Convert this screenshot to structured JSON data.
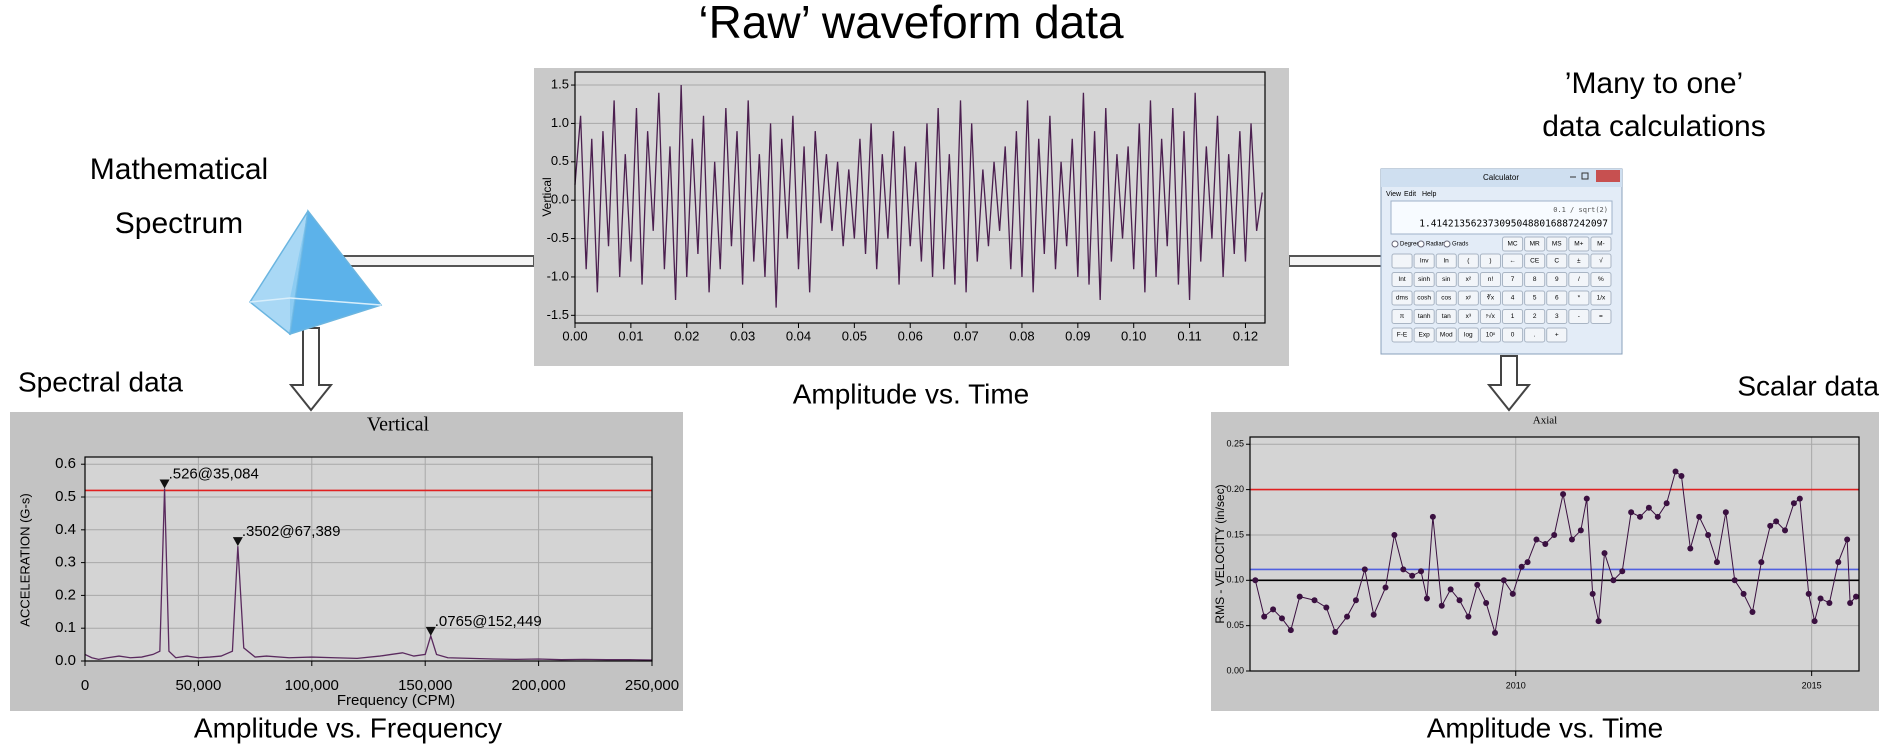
{
  "slide": {
    "title": "‘Raw’ waveform data",
    "spectrum_label_1": "Mathematical",
    "spectrum_label_2": "Spectrum",
    "calc_label_1": "’Many to one’",
    "calc_label_2": "data calculations",
    "spectral_label": "Spectral data",
    "scalar_label": "Scalar data"
  },
  "chart_data": [
    {
      "type": "line",
      "caption": "Amplitude vs. Time",
      "y_label": "Vertical",
      "color": "#4b1f4f",
      "grid": "y",
      "x": [
        0,
        0.001,
        0.002,
        0.003,
        0.004,
        0.005,
        0.006,
        0.007,
        0.008,
        0.009,
        0.01,
        0.011,
        0.012,
        0.013,
        0.014,
        0.015,
        0.016,
        0.017,
        0.018,
        0.019,
        0.02,
        0.021,
        0.022,
        0.023,
        0.024,
        0.025,
        0.026,
        0.027,
        0.028,
        0.029,
        0.03,
        0.031,
        0.032,
        0.033,
        0.034,
        0.035,
        0.036,
        0.037,
        0.038,
        0.039,
        0.04,
        0.041,
        0.042,
        0.043,
        0.044,
        0.045,
        0.046,
        0.047,
        0.048,
        0.049,
        0.05,
        0.051,
        0.052,
        0.053,
        0.054,
        0.055,
        0.056,
        0.057,
        0.058,
        0.059,
        0.06,
        0.061,
        0.062,
        0.063,
        0.064,
        0.065,
        0.066,
        0.067,
        0.068,
        0.069,
        0.07,
        0.071,
        0.072,
        0.073,
        0.074,
        0.075,
        0.076,
        0.077,
        0.078,
        0.079,
        0.08,
        0.081,
        0.082,
        0.083,
        0.084,
        0.085,
        0.086,
        0.087,
        0.088,
        0.089,
        0.09,
        0.091,
        0.092,
        0.093,
        0.094,
        0.095,
        0.096,
        0.097,
        0.098,
        0.099,
        0.1,
        0.101,
        0.102,
        0.103,
        0.104,
        0.105,
        0.106,
        0.107,
        0.108,
        0.109,
        0.11,
        0.111,
        0.112,
        0.113,
        0.114,
        0.115,
        0.116,
        0.117,
        0.118,
        0.119,
        0.12,
        0.121,
        0.122,
        0.123
      ],
      "values": [
        0.2,
        1.1,
        -0.9,
        0.8,
        -1.2,
        0.9,
        -0.6,
        1.3,
        -1.0,
        0.6,
        -0.8,
        1.2,
        -1.1,
        0.9,
        -0.4,
        1.4,
        -0.9,
        0.7,
        -1.3,
        1.5,
        -1.0,
        0.8,
        -0.7,
        1.1,
        -1.2,
        0.5,
        -0.9,
        1.2,
        -0.6,
        0.9,
        -1.1,
        1.3,
        -0.8,
        0.6,
        -1.0,
        1.0,
        -1.4,
        0.8,
        -0.5,
        1.1,
        -0.9,
        0.7,
        -1.2,
        0.9,
        -0.3,
        0.6,
        -0.4,
        0.5,
        -0.6,
        0.4,
        -0.5,
        0.8,
        -0.7,
        1.0,
        -0.9,
        0.6,
        -0.5,
        0.9,
        -1.1,
        0.7,
        -0.6,
        0.5,
        -0.8,
        1.0,
        -1.0,
        1.2,
        -0.9,
        0.6,
        -1.1,
        1.3,
        -1.2,
        1.0,
        -0.8,
        0.4,
        -0.6,
        0.5,
        -0.4,
        0.7,
        -0.9,
        0.9,
        -1.0,
        1.3,
        -1.2,
        0.8,
        -0.7,
        1.1,
        -0.9,
        0.5,
        -0.6,
        0.8,
        -1.0,
        1.4,
        -1.1,
        0.9,
        -1.3,
        1.2,
        -0.8,
        0.6,
        -0.5,
        0.7,
        -0.9,
        1.0,
        -1.2,
        1.3,
        -1.0,
        0.8,
        -0.6,
        1.2,
        -1.1,
        0.9,
        -1.3,
        1.4,
        -0.8,
        0.7,
        -0.5,
        1.1,
        -1.0,
        0.6,
        -0.7,
        0.9,
        -0.8,
        1.0,
        -0.4,
        0.1
      ],
      "xlim": [
        0,
        0.1235
      ],
      "ylim": [
        -1.6,
        1.67
      ],
      "xticks": [
        {
          "value": 0,
          "label": "0.00"
        },
        {
          "value": 0.01,
          "label": "0.01"
        },
        {
          "value": 0.02,
          "label": "0.02"
        },
        {
          "value": 0.03,
          "label": "0.03"
        },
        {
          "value": 0.04,
          "label": "0.04"
        },
        {
          "value": 0.05,
          "label": "0.05"
        },
        {
          "value": 0.06,
          "label": "0.06"
        },
        {
          "value": 0.07,
          "label": "0.07"
        },
        {
          "value": 0.08,
          "label": "0.08"
        },
        {
          "value": 0.09,
          "label": "0.09"
        },
        {
          "value": 0.1,
          "label": "0.10"
        },
        {
          "value": 0.11,
          "label": "0.11"
        },
        {
          "value": 0.12,
          "label": "0.12"
        }
      ],
      "yticks": [
        {
          "value": 1.5,
          "label": "1.5"
        },
        {
          "value": 1,
          "label": "1.0"
        },
        {
          "value": 0.5,
          "label": "0.5"
        },
        {
          "value": 0,
          "label": "0.0"
        },
        {
          "value": -0.5,
          "label": "-0.5"
        },
        {
          "value": -1,
          "label": "-1.0"
        },
        {
          "value": -1.5,
          "label": "-1.5"
        }
      ]
    },
    {
      "type": "line",
      "caption": "Amplitude vs. Frequency",
      "title": "Vertical",
      "x_label": "Frequency (CPM)",
      "y_label": "ACCELERATION (G-s)",
      "color": "#5a2a5e",
      "grid": "both",
      "x": [
        0,
        3000,
        6000,
        10000,
        15000,
        20000,
        25000,
        30000,
        33000,
        35084,
        37000,
        40000,
        45000,
        50000,
        55000,
        60000,
        65000,
        67389,
        70000,
        75000,
        80000,
        90000,
        100000,
        110000,
        120000,
        130000,
        135000,
        140000,
        145000,
        150000,
        152449,
        155000,
        160000,
        170000,
        180000,
        190000,
        200000,
        210000,
        220000,
        230000,
        240000,
        250000
      ],
      "values": [
        0.02,
        0.01,
        0.005,
        0.01,
        0.015,
        0.01,
        0.012,
        0.02,
        0.03,
        0.526,
        0.03,
        0.01,
        0.015,
        0.01,
        0.012,
        0.015,
        0.03,
        0.3502,
        0.04,
        0.012,
        0.015,
        0.01,
        0.012,
        0.01,
        0.008,
        0.015,
        0.02,
        0.025,
        0.015,
        0.02,
        0.0765,
        0.02,
        0.01,
        0.008,
        0.006,
        0.005,
        0.006,
        0.004,
        0.005,
        0.004,
        0.004,
        0.003
      ],
      "xlim": [
        0,
        250000
      ],
      "ylim": [
        0,
        0.622
      ],
      "xticks": [
        0,
        {
          "value": 50000,
          "label": "50,000"
        },
        {
          "value": 100000,
          "label": "100,000"
        },
        {
          "value": 150000,
          "label": "150,000"
        },
        {
          "value": 200000,
          "label": "200,000"
        },
        {
          "value": 250000,
          "label": "250,000"
        }
      ],
      "yticks": [
        {
          "value": 0,
          "label": "0.0"
        },
        0.1,
        0.2,
        0.3,
        0.4,
        0.5,
        0.6
      ],
      "reference_lines": [
        {
          "value": 0.52,
          "color": "#e02020"
        }
      ],
      "annotations": [
        {
          "x": 35084,
          "y": 0.526,
          "text": ".526@35,084"
        },
        {
          "x": 67389,
          "y": 0.3502,
          "text": ".3502@67,389"
        },
        {
          "x": 152449,
          "y": 0.0765,
          "text": ".0765@152,449"
        }
      ]
    },
    {
      "type": "line",
      "caption": "Amplitude vs. Time",
      "title": "Axial",
      "y_label": "RMS - VELOCITY (in/sec)",
      "color": "#3a1040",
      "markers": true,
      "grid": "both",
      "x": [
        2005.6,
        2005.75,
        2005.9,
        2006.05,
        2006.2,
        2006.35,
        2006.6,
        2006.8,
        2006.95,
        2007.15,
        2007.3,
        2007.45,
        2007.6,
        2007.8,
        2007.95,
        2008.1,
        2008.25,
        2008.4,
        2008.5,
        2008.6,
        2008.75,
        2008.9,
        2009.05,
        2009.2,
        2009.35,
        2009.5,
        2009.65,
        2009.8,
        2009.95,
        2010.1,
        2010.2,
        2010.35,
        2010.5,
        2010.65,
        2010.8,
        2010.95,
        2011.1,
        2011.2,
        2011.3,
        2011.4,
        2011.5,
        2011.65,
        2011.8,
        2011.95,
        2012.1,
        2012.25,
        2012.4,
        2012.55,
        2012.7,
        2012.8,
        2012.95,
        2013.1,
        2013.25,
        2013.4,
        2013.55,
        2013.7,
        2013.85,
        2014.0,
        2014.15,
        2014.3,
        2014.4,
        2014.55,
        2014.7,
        2014.8,
        2014.95,
        2015.05,
        2015.15,
        2015.3,
        2015.45,
        2015.6,
        2015.65,
        2015.75
      ],
      "values": [
        0.1,
        0.06,
        0.068,
        0.058,
        0.045,
        0.082,
        0.078,
        0.07,
        0.043,
        0.06,
        0.078,
        0.112,
        0.062,
        0.092,
        0.15,
        0.112,
        0.105,
        0.11,
        0.08,
        0.17,
        0.072,
        0.09,
        0.078,
        0.06,
        0.095,
        0.075,
        0.042,
        0.1,
        0.085,
        0.115,
        0.12,
        0.145,
        0.14,
        0.15,
        0.195,
        0.145,
        0.155,
        0.19,
        0.085,
        0.055,
        0.13,
        0.1,
        0.11,
        0.175,
        0.17,
        0.18,
        0.17,
        0.185,
        0.22,
        0.215,
        0.135,
        0.17,
        0.15,
        0.12,
        0.175,
        0.1,
        0.085,
        0.065,
        0.12,
        0.16,
        0.165,
        0.155,
        0.185,
        0.19,
        0.085,
        0.055,
        0.08,
        0.075,
        0.12,
        0.145,
        0.075,
        0.082
      ],
      "xlim": [
        2005.51,
        2015.8
      ],
      "ylim": [
        0,
        0.258
      ],
      "xticks": [
        2010,
        2015
      ],
      "yticks": [
        {
          "value": 0,
          "label": "0.00"
        },
        {
          "value": 0.05,
          "label": "0.05"
        },
        {
          "value": 0.1,
          "label": "0.10"
        },
        {
          "value": 0.15,
          "label": "0.15"
        },
        {
          "value": 0.2,
          "label": "0.20"
        },
        {
          "value": 0.25,
          "label": "0.25"
        }
      ],
      "reference_lines": [
        {
          "value": 0.2,
          "color": "#e02020"
        },
        {
          "value": 0.112,
          "color": "#5060e0"
        },
        {
          "value": 0.1,
          "color": "#000000"
        }
      ]
    }
  ],
  "calculator": {
    "title": "Calculator",
    "menu": [
      "View",
      "Edit",
      "Help"
    ],
    "expression": "0.1 / sqrt(2)",
    "result": "1.4142135623730950488016887242097",
    "angle_modes": [
      "Degrees",
      "Radians",
      "Grads"
    ],
    "memory": [
      "MC",
      "MR",
      "MS",
      "M+",
      "M-"
    ],
    "buttons": [
      [
        "Inv",
        "ln",
        "(",
        ")",
        "←",
        "CE",
        "C",
        "±",
        "√"
      ],
      [
        "Int",
        "sinh",
        "sin",
        "x²",
        "n!",
        "7",
        "8",
        "9",
        "/",
        "%"
      ],
      [
        "dms",
        "cosh",
        "cos",
        "xʸ",
        "∛x",
        "4",
        "5",
        "6",
        "*",
        "1/x"
      ],
      [
        "π",
        "tanh",
        "tan",
        "x³",
        "ʸ√x",
        "1",
        "2",
        "3",
        "-",
        "="
      ],
      [
        "F-E",
        "Exp",
        "Mod",
        "log",
        "10ˣ",
        "0",
        ".",
        "+"
      ]
    ]
  }
}
